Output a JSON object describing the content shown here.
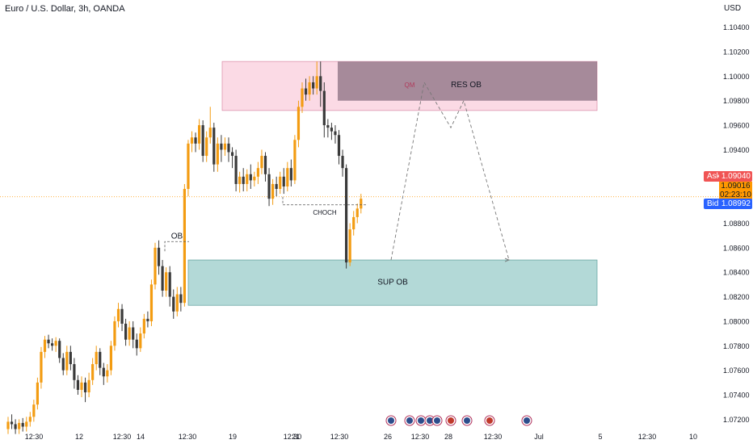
{
  "header": {
    "title": "Euro / U.S. Dollar, 3h, OANDA",
    "currency": "USD"
  },
  "quote": {
    "ask_label": "Ask",
    "ask_value": "1.09040",
    "bid_label": "Bid",
    "bid_value": "1.08992",
    "last_value": "1.09016",
    "countdown": "02:23:10"
  },
  "colors": {
    "up": "#f39c12",
    "down": "#3a3a3a",
    "res_zone": "#f8bbd0",
    "res_zone_dark": "#8a6f80",
    "sup_zone": "#80c0bd",
    "ask": "#f05454",
    "bid": "#2962ff",
    "current": "#ff9800"
  },
  "chart_data": {
    "type": "candlestick",
    "y_ticks": [
      "1.10400",
      "1.10200",
      "1.10000",
      "1.09800",
      "1.09600",
      "1.09400",
      "1.09200",
      "1.09000",
      "1.08800",
      "1.08600",
      "1.08400",
      "1.08200",
      "1.08000",
      "1.07800",
      "1.07600",
      "1.07400",
      "1.07200"
    ],
    "x_ticks": [
      "12:30",
      "12",
      "12:30",
      "14",
      "12:30",
      "19",
      "12:30",
      "21",
      "12:30",
      "26",
      "12:30",
      "28",
      "12:30",
      "Jul",
      "5",
      "12:30",
      "10"
    ],
    "ylim": [
      1.0713,
      1.1049
    ],
    "candles": [
      [
        1.0712,
        1.0718,
        1.0708,
        1.0722
      ],
      [
        1.0718,
        1.0716,
        1.0712,
        1.0724
      ],
      [
        1.0716,
        1.0712,
        1.0708,
        1.072
      ],
      [
        1.0712,
        1.0717,
        1.0708,
        1.072
      ],
      [
        1.0717,
        1.0714,
        1.071,
        1.0721
      ],
      [
        1.0714,
        1.0718,
        1.071,
        1.0722
      ],
      [
        1.0718,
        1.0722,
        1.0714,
        1.0726
      ],
      [
        1.0722,
        1.0732,
        1.0718,
        1.0736
      ],
      [
        1.0732,
        1.075,
        1.0728,
        1.0754
      ],
      [
        1.075,
        1.0775,
        1.0745,
        1.0779
      ],
      [
        1.0775,
        1.0785,
        1.077,
        1.0788
      ],
      [
        1.0785,
        1.0782,
        1.0778,
        1.0789
      ],
      [
        1.0782,
        1.078,
        1.0776,
        1.0786
      ],
      [
        1.078,
        1.0784,
        1.0775,
        1.0787
      ],
      [
        1.0784,
        1.077,
        1.0766,
        1.0786
      ],
      [
        1.077,
        1.076,
        1.0756,
        1.0774
      ],
      [
        1.076,
        1.0775,
        1.0756,
        1.078
      ],
      [
        1.0775,
        1.0765,
        1.076,
        1.078
      ],
      [
        1.0765,
        1.0752,
        1.0745,
        1.077
      ],
      [
        1.0752,
        1.0744,
        1.074,
        1.0756
      ],
      [
        1.0744,
        1.075,
        1.0738,
        1.0755
      ],
      [
        1.075,
        1.0742,
        1.0734,
        1.0754
      ],
      [
        1.0742,
        1.0752,
        1.0738,
        1.0758
      ],
      [
        1.0752,
        1.0765,
        1.0748,
        1.077
      ],
      [
        1.0765,
        1.0775,
        1.076,
        1.078
      ],
      [
        1.0775,
        1.0762,
        1.0756,
        1.0778
      ],
      [
        1.0762,
        1.0755,
        1.0748,
        1.0766
      ],
      [
        1.0755,
        1.076,
        1.075,
        1.0765
      ],
      [
        1.076,
        1.078,
        1.0756,
        1.0784
      ],
      [
        1.078,
        1.08,
        1.0776,
        1.0804
      ],
      [
        1.08,
        1.081,
        1.0795,
        1.0815
      ],
      [
        1.081,
        1.0798,
        1.0792,
        1.0814
      ],
      [
        1.0798,
        1.0785,
        1.078,
        1.0802
      ],
      [
        1.0785,
        1.0795,
        1.078,
        1.08
      ],
      [
        1.0795,
        1.0785,
        1.0778,
        1.08
      ],
      [
        1.0785,
        1.0778,
        1.0772,
        1.079
      ],
      [
        1.0778,
        1.079,
        1.0775,
        1.0795
      ],
      [
        1.079,
        1.0802,
        1.0786,
        1.0806
      ],
      [
        1.0802,
        1.08,
        1.0795,
        1.0808
      ],
      [
        1.08,
        1.083,
        1.0796,
        1.0834
      ],
      [
        1.083,
        1.086,
        1.0826,
        1.0864
      ],
      [
        1.086,
        1.0845,
        1.0838,
        1.0866
      ],
      [
        1.0845,
        1.0825,
        1.082,
        1.085
      ],
      [
        1.0825,
        1.084,
        1.082,
        1.0844
      ],
      [
        1.084,
        1.082,
        1.0812,
        1.0845
      ],
      [
        1.082,
        1.0808,
        1.0802,
        1.0826
      ],
      [
        1.0808,
        1.0822,
        1.0804,
        1.0828
      ],
      [
        1.0822,
        1.0815,
        1.0808,
        1.0828
      ],
      [
        1.0815,
        1.0908,
        1.0812,
        1.0912
      ],
      [
        1.0908,
        1.0945,
        1.0902,
        1.0948
      ],
      [
        1.0945,
        1.095,
        1.0938,
        1.0955
      ],
      [
        1.095,
        1.0945,
        1.0938,
        1.0954
      ],
      [
        1.0945,
        1.096,
        1.094,
        1.0965
      ],
      [
        1.096,
        1.0935,
        1.093,
        1.0964
      ],
      [
        1.0935,
        1.095,
        1.093,
        1.0955
      ],
      [
        1.095,
        1.0958,
        1.0945,
        1.0975
      ],
      [
        1.0958,
        1.0928,
        1.0922,
        1.0962
      ],
      [
        1.0928,
        1.0945,
        1.0922,
        1.095
      ],
      [
        1.0945,
        1.094,
        1.093,
        1.0952
      ],
      [
        1.094,
        1.0945,
        1.0935,
        1.095
      ],
      [
        1.0945,
        1.0938,
        1.093,
        1.095
      ],
      [
        1.0938,
        1.0935,
        1.0925,
        1.0942
      ],
      [
        1.0935,
        1.0912,
        1.0906,
        1.094
      ],
      [
        1.0912,
        1.0918,
        1.0905,
        1.0922
      ],
      [
        1.0918,
        1.0912,
        1.0906,
        1.0925
      ],
      [
        1.0912,
        1.092,
        1.0906,
        1.0924
      ],
      [
        1.092,
        1.0915,
        1.0908,
        1.0928
      ],
      [
        1.0915,
        1.0918,
        1.091,
        1.0922
      ],
      [
        1.0918,
        1.0925,
        1.0912,
        1.093
      ],
      [
        1.0925,
        1.0935,
        1.092,
        1.094
      ],
      [
        1.0935,
        1.092,
        1.0914,
        1.0938
      ],
      [
        1.092,
        1.09,
        1.0894,
        1.0925
      ],
      [
        1.09,
        1.0912,
        1.0895,
        1.0916
      ],
      [
        1.0912,
        1.0908,
        1.0902,
        1.0918
      ],
      [
        1.0908,
        1.0918,
        1.0904,
        1.0922
      ],
      [
        1.0918,
        1.091,
        1.0904,
        1.0925
      ],
      [
        1.091,
        1.0925,
        1.0906,
        1.093
      ],
      [
        1.0925,
        1.0915,
        1.091,
        1.0932
      ],
      [
        1.0915,
        1.0948,
        1.0912,
        1.0952
      ],
      [
        1.0948,
        1.0975,
        1.0942,
        1.098
      ],
      [
        1.0975,
        1.099,
        1.097,
        1.0995
      ],
      [
        1.099,
        1.0985,
        1.098,
        1.0998
      ],
      [
        1.0985,
        1.0995,
        1.098,
        1.1
      ],
      [
        1.0995,
        1.099,
        1.0985,
        1.1
      ],
      [
        1.099,
        1.1,
        1.0985,
        1.1012
      ],
      [
        1.1,
        1.0988,
        1.0975,
        1.1012
      ],
      [
        1.0988,
        1.096,
        1.095,
        1.0995
      ],
      [
        1.096,
        1.0958,
        1.095,
        1.0965
      ],
      [
        1.0958,
        1.0955,
        1.0948,
        1.0962
      ],
      [
        1.0955,
        1.0952,
        1.0945,
        1.096
      ],
      [
        1.0952,
        1.0935,
        1.0928,
        1.0956
      ],
      [
        1.0935,
        1.0925,
        1.0918,
        1.094
      ],
      [
        1.0925,
        1.0848,
        1.0843,
        1.0928
      ],
      [
        1.0848,
        1.0875,
        1.0845,
        1.088
      ],
      [
        1.0875,
        1.0885,
        1.087,
        1.089
      ],
      [
        1.0885,
        1.0892,
        1.088,
        1.0896
      ],
      [
        1.0892,
        1.09,
        1.0888,
        1.0904
      ]
    ],
    "zones": [
      {
        "label": "RES OB",
        "top": 1.1012,
        "bottom": 1.0972
      },
      {
        "label": "SUP OB",
        "top": 1.085,
        "bottom": 1.0813
      }
    ],
    "annotations": [
      {
        "label": "OB",
        "price": 1.0865
      },
      {
        "label": "CHOCH",
        "price": 1.0895
      },
      {
        "label": "QM",
        "price": 1.0993
      }
    ],
    "projection": [
      1.085,
      1.0995,
      1.0958,
      1.098,
      1.085
    ]
  }
}
